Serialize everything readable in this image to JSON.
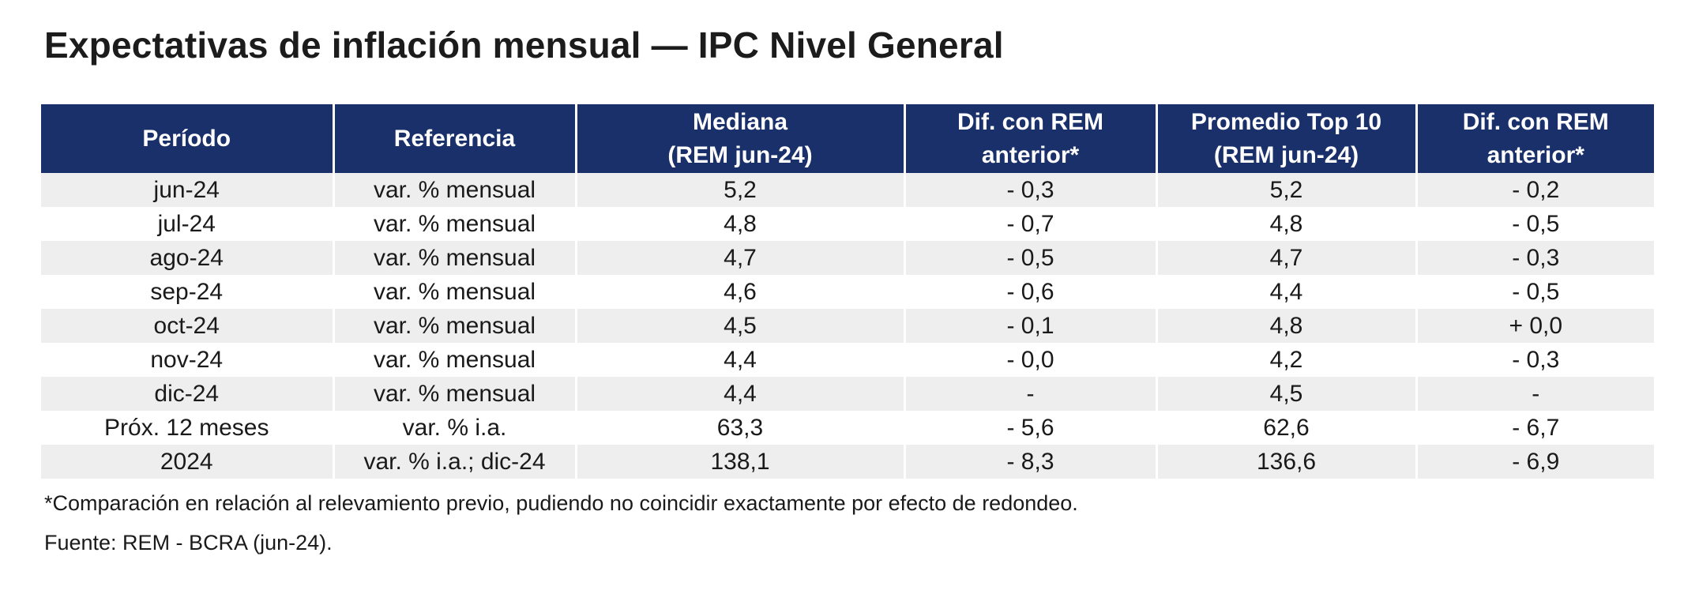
{
  "title": "Expectativas de inflación mensual — IPC Nivel General",
  "table": {
    "headers": [
      [
        "Período"
      ],
      [
        "Referencia"
      ],
      [
        "Mediana",
        "(REM jun-24)"
      ],
      [
        "Dif. con REM",
        "anterior*"
      ],
      [
        "Promedio Top 10",
        "(REM jun-24)"
      ],
      [
        "Dif. con REM",
        "anterior*"
      ]
    ],
    "rows": [
      [
        "jun-24",
        "var. % mensual",
        "5,2",
        "- 0,3",
        "5,2",
        "- 0,2"
      ],
      [
        "jul-24",
        "var. % mensual",
        "4,8",
        "- 0,7",
        "4,8",
        "- 0,5"
      ],
      [
        "ago-24",
        "var. % mensual",
        "4,7",
        "- 0,5",
        "4,7",
        "- 0,3"
      ],
      [
        "sep-24",
        "var. % mensual",
        "4,6",
        "- 0,6",
        "4,4",
        "- 0,5"
      ],
      [
        "oct-24",
        "var. % mensual",
        "4,5",
        "- 0,1",
        "4,8",
        "+ 0,0"
      ],
      [
        "nov-24",
        "var. % mensual",
        "4,4",
        "- 0,0",
        "4,2",
        "- 0,3"
      ],
      [
        "dic-24",
        "var. % mensual",
        "4,4",
        "-",
        "4,5",
        "-"
      ],
      [
        "Próx. 12 meses",
        "var. % i.a.",
        "63,3",
        "- 5,6",
        "62,6",
        "- 6,7"
      ],
      [
        "2024",
        "var. % i.a.; dic-24",
        "138,1",
        "- 8,3",
        "136,6",
        "- 6,9"
      ]
    ]
  },
  "footnote": "*Comparación en relación al relevamiento previo, pudiendo no coincidir exactamente por efecto de redondeo.",
  "source": "Fuente: REM - BCRA (jun-24).",
  "colors": {
    "header_bg": "#19306a",
    "stripe_bg": "#eeeeee",
    "text": "#1a1a1a"
  }
}
